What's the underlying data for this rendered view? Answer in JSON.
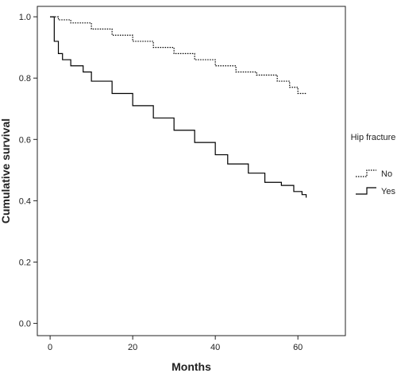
{
  "chart_data": {
    "type": "step",
    "x_label": "Months",
    "y_label": "Cumulative survival",
    "legend_title": "Hip fracture",
    "legend": "right",
    "xlim": [
      -3.1,
      71.5
    ],
    "ylim": [
      -0.04,
      1.034
    ],
    "xticks": [
      0,
      20,
      40,
      60
    ],
    "yticks": [
      {
        "value": 0,
        "label": "0.0"
      },
      0.2,
      0.4,
      0.6,
      0.8,
      {
        "value": 1,
        "label": "1.0"
      }
    ],
    "series": [
      {
        "name": "No",
        "color": "#000000",
        "line_style": "dotted",
        "x": [
          0,
          2,
          5,
          10,
          15,
          20,
          25,
          30,
          35,
          40,
          45,
          50,
          55,
          58,
          60,
          62
        ],
        "values": [
          1.0,
          0.99,
          0.98,
          0.96,
          0.94,
          0.92,
          0.9,
          0.88,
          0.86,
          0.84,
          0.82,
          0.81,
          0.79,
          0.77,
          0.75,
          0.75
        ]
      },
      {
        "name": "Yes",
        "color": "#000000",
        "line_style": "solid",
        "x": [
          0,
          1,
          2,
          3,
          5,
          8,
          10,
          15,
          20,
          25,
          30,
          35,
          40,
          43,
          48,
          52,
          56,
          59,
          61,
          62
        ],
        "values": [
          1.0,
          0.92,
          0.88,
          0.86,
          0.84,
          0.82,
          0.79,
          0.75,
          0.71,
          0.67,
          0.63,
          0.59,
          0.55,
          0.52,
          0.49,
          0.46,
          0.45,
          0.43,
          0.42,
          0.41
        ]
      }
    ]
  }
}
